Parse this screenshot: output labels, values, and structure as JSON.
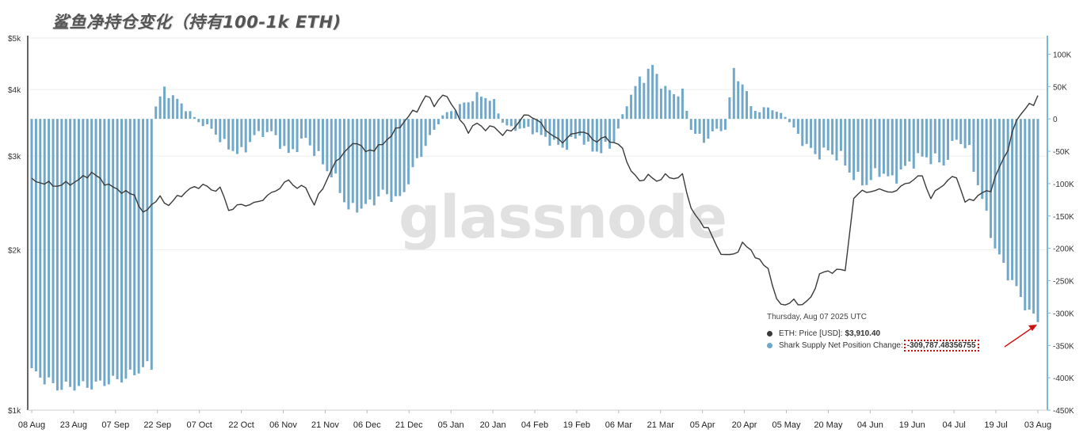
{
  "title": "鲨鱼净持仓变化（持有100-1k ETH)",
  "watermark": "glassnode",
  "tooltip": {
    "date": "Thursday, Aug 07 2025 UTC",
    "price_label": "ETH: Price [USD]:",
    "price_value": "$3,910.40",
    "supply_label": "Shark Supply Net Position Change:",
    "supply_value": "-309,787.48356755"
  },
  "colors": {
    "bar": "#6fa8c8",
    "price_line": "#3a3a3a",
    "right_axis": "#7fb6d6",
    "highlight_box": "#d01010",
    "arrow": "#d01010"
  },
  "chart_data": {
    "type": "bar",
    "x_tick_labels": [
      "08 Aug",
      "23 Aug",
      "07 Sep",
      "22 Sep",
      "07 Oct",
      "22 Oct",
      "06 Nov",
      "21 Nov",
      "06 Dec",
      "21 Dec",
      "05 Jan",
      "20 Jan",
      "04 Feb",
      "19 Feb",
      "06 Mar",
      "21 Mar",
      "05 Apr",
      "20 Apr",
      "05 May",
      "20 May",
      "04 Jun",
      "19 Jun",
      "04 Jul",
      "19 Jul",
      "03 Aug"
    ],
    "left_axis": {
      "scale": "log",
      "range": [
        1000,
        5000
      ],
      "ticks": [
        "$1k",
        "$2k",
        "$3k",
        "$4k",
        "$5k"
      ],
      "tick_values": [
        1000,
        2000,
        3000,
        4000,
        5000
      ]
    },
    "right_axis": {
      "range": [
        -450000,
        125000
      ],
      "ticks": [
        "100K",
        "50K",
        "0",
        "-50K",
        "-100K",
        "-150K",
        "-200K",
        "-250K",
        "-300K",
        "-350K",
        "-400K",
        "-450K"
      ],
      "tick_values": [
        100000,
        50000,
        0,
        -50000,
        -100000,
        -150000,
        -200000,
        -250000,
        -300000,
        -350000,
        -400000,
        -450000
      ]
    },
    "grid": true,
    "series": [
      {
        "name": "Shark Supply Net Position Change",
        "type": "bar",
        "keypoints": [
          [
            0,
            -390000
          ],
          [
            6,
            -415000
          ],
          [
            14,
            -412000
          ],
          [
            22,
            -400000
          ],
          [
            26,
            -385000
          ],
          [
            28,
            -380000
          ],
          [
            29,
            20000
          ],
          [
            31,
            45000
          ],
          [
            33,
            35000
          ],
          [
            37,
            10000
          ],
          [
            39,
            -5000
          ],
          [
            42,
            -15000
          ],
          [
            45,
            -40000
          ],
          [
            49,
            -55000
          ],
          [
            52,
            -25000
          ],
          [
            56,
            -20000
          ],
          [
            60,
            -55000
          ],
          [
            64,
            -30000
          ],
          [
            67,
            -60000
          ],
          [
            71,
            -95000
          ],
          [
            74,
            -140000
          ],
          [
            78,
            -135000
          ],
          [
            82,
            -115000
          ],
          [
            86,
            -125000
          ],
          [
            88,
            -95000
          ],
          [
            90,
            -65000
          ],
          [
            92,
            -40000
          ],
          [
            96,
            5000
          ],
          [
            100,
            20000
          ],
          [
            104,
            35000
          ],
          [
            106,
            35000
          ],
          [
            108,
            25000
          ],
          [
            110,
            -5000
          ],
          [
            112,
            -15000
          ],
          [
            116,
            -15000
          ],
          [
            120,
            -30000
          ],
          [
            124,
            -45000
          ],
          [
            128,
            -25000
          ],
          [
            130,
            -45000
          ],
          [
            133,
            -50000
          ],
          [
            136,
            -35000
          ],
          [
            139,
            25000
          ],
          [
            142,
            60000
          ],
          [
            145,
            80000
          ],
          [
            148,
            45000
          ],
          [
            150,
            40000
          ],
          [
            152,
            40000
          ],
          [
            154,
            -15000
          ],
          [
            157,
            -35000
          ],
          [
            159,
            -20000
          ],
          [
            162,
            -15000
          ],
          [
            164,
            75000
          ],
          [
            166,
            55000
          ],
          [
            168,
            20000
          ],
          [
            170,
            10000
          ],
          [
            172,
            20000
          ],
          [
            174,
            10000
          ],
          [
            176,
            5000
          ],
          [
            178,
            -15000
          ],
          [
            180,
            -35000
          ],
          [
            183,
            -55000
          ],
          [
            186,
            -50000
          ],
          [
            189,
            -60000
          ],
          [
            192,
            -90000
          ],
          [
            195,
            -100000
          ],
          [
            198,
            -80000
          ],
          [
            201,
            -95000
          ],
          [
            204,
            -75000
          ],
          [
            207,
            -60000
          ],
          [
            210,
            -60000
          ],
          [
            213,
            -70000
          ],
          [
            216,
            -30000
          ],
          [
            219,
            -50000
          ],
          [
            221,
            -100000
          ],
          [
            223,
            -150000
          ],
          [
            225,
            -200000
          ],
          [
            228,
            -240000
          ],
          [
            231,
            -275000
          ],
          [
            233,
            -300000
          ],
          [
            235,
            -310000
          ]
        ]
      },
      {
        "name": "ETH: Price [USD]",
        "type": "line",
        "keypoints": [
          [
            0,
            2700
          ],
          [
            6,
            2640
          ],
          [
            10,
            2680
          ],
          [
            14,
            2790
          ],
          [
            18,
            2640
          ],
          [
            22,
            2560
          ],
          [
            24,
            2540
          ],
          [
            26,
            2330
          ],
          [
            28,
            2440
          ],
          [
            30,
            2500
          ],
          [
            32,
            2430
          ],
          [
            34,
            2510
          ],
          [
            37,
            2600
          ],
          [
            40,
            2650
          ],
          [
            42,
            2590
          ],
          [
            44,
            2610
          ],
          [
            46,
            2380
          ],
          [
            49,
            2430
          ],
          [
            52,
            2440
          ],
          [
            56,
            2550
          ],
          [
            60,
            2700
          ],
          [
            62,
            2620
          ],
          [
            64,
            2620
          ],
          [
            66,
            2430
          ],
          [
            68,
            2620
          ],
          [
            70,
            2820
          ],
          [
            72,
            3000
          ],
          [
            74,
            3100
          ],
          [
            76,
            3200
          ],
          [
            78,
            3050
          ],
          [
            80,
            3100
          ],
          [
            82,
            3150
          ],
          [
            84,
            3300
          ],
          [
            86,
            3400
          ],
          [
            88,
            3580
          ],
          [
            90,
            3650
          ],
          [
            92,
            3900
          ],
          [
            94,
            3750
          ],
          [
            96,
            3900
          ],
          [
            98,
            3800
          ],
          [
            100,
            3500
          ],
          [
            102,
            3350
          ],
          [
            104,
            3450
          ],
          [
            106,
            3380
          ],
          [
            108,
            3400
          ],
          [
            110,
            3300
          ],
          [
            112,
            3350
          ],
          [
            114,
            3500
          ],
          [
            116,
            3600
          ],
          [
            118,
            3500
          ],
          [
            120,
            3380
          ],
          [
            122,
            3250
          ],
          [
            124,
            3200
          ],
          [
            126,
            3280
          ],
          [
            128,
            3350
          ],
          [
            130,
            3280
          ],
          [
            132,
            3200
          ],
          [
            134,
            3250
          ],
          [
            136,
            3180
          ],
          [
            138,
            3100
          ],
          [
            140,
            2800
          ],
          [
            142,
            2700
          ],
          [
            144,
            2750
          ],
          [
            146,
            2700
          ],
          [
            148,
            2750
          ],
          [
            150,
            2730
          ],
          [
            152,
            2750
          ],
          [
            154,
            2400
          ],
          [
            156,
            2250
          ],
          [
            158,
            2200
          ],
          [
            160,
            2020
          ],
          [
            162,
            1950
          ],
          [
            164,
            1960
          ],
          [
            166,
            2050
          ],
          [
            168,
            2000
          ],
          [
            170,
            1900
          ],
          [
            172,
            1850
          ],
          [
            174,
            1600
          ],
          [
            176,
            1580
          ],
          [
            178,
            1600
          ],
          [
            180,
            1580
          ],
          [
            182,
            1620
          ],
          [
            184,
            1800
          ],
          [
            186,
            1820
          ],
          [
            188,
            1830
          ],
          [
            190,
            1830
          ],
          [
            192,
            2480
          ],
          [
            194,
            2600
          ],
          [
            196,
            2550
          ],
          [
            198,
            2620
          ],
          [
            200,
            2550
          ],
          [
            202,
            2600
          ],
          [
            204,
            2650
          ],
          [
            206,
            2720
          ],
          [
            208,
            2750
          ],
          [
            210,
            2500
          ],
          [
            212,
            2620
          ],
          [
            214,
            2700
          ],
          [
            216,
            2750
          ],
          [
            218,
            2450
          ],
          [
            220,
            2500
          ],
          [
            222,
            2550
          ],
          [
            224,
            2600
          ],
          [
            226,
            2850
          ],
          [
            228,
            3100
          ],
          [
            230,
            3500
          ],
          [
            232,
            3700
          ],
          [
            234,
            3750
          ],
          [
            235,
            3910
          ]
        ]
      }
    ]
  }
}
